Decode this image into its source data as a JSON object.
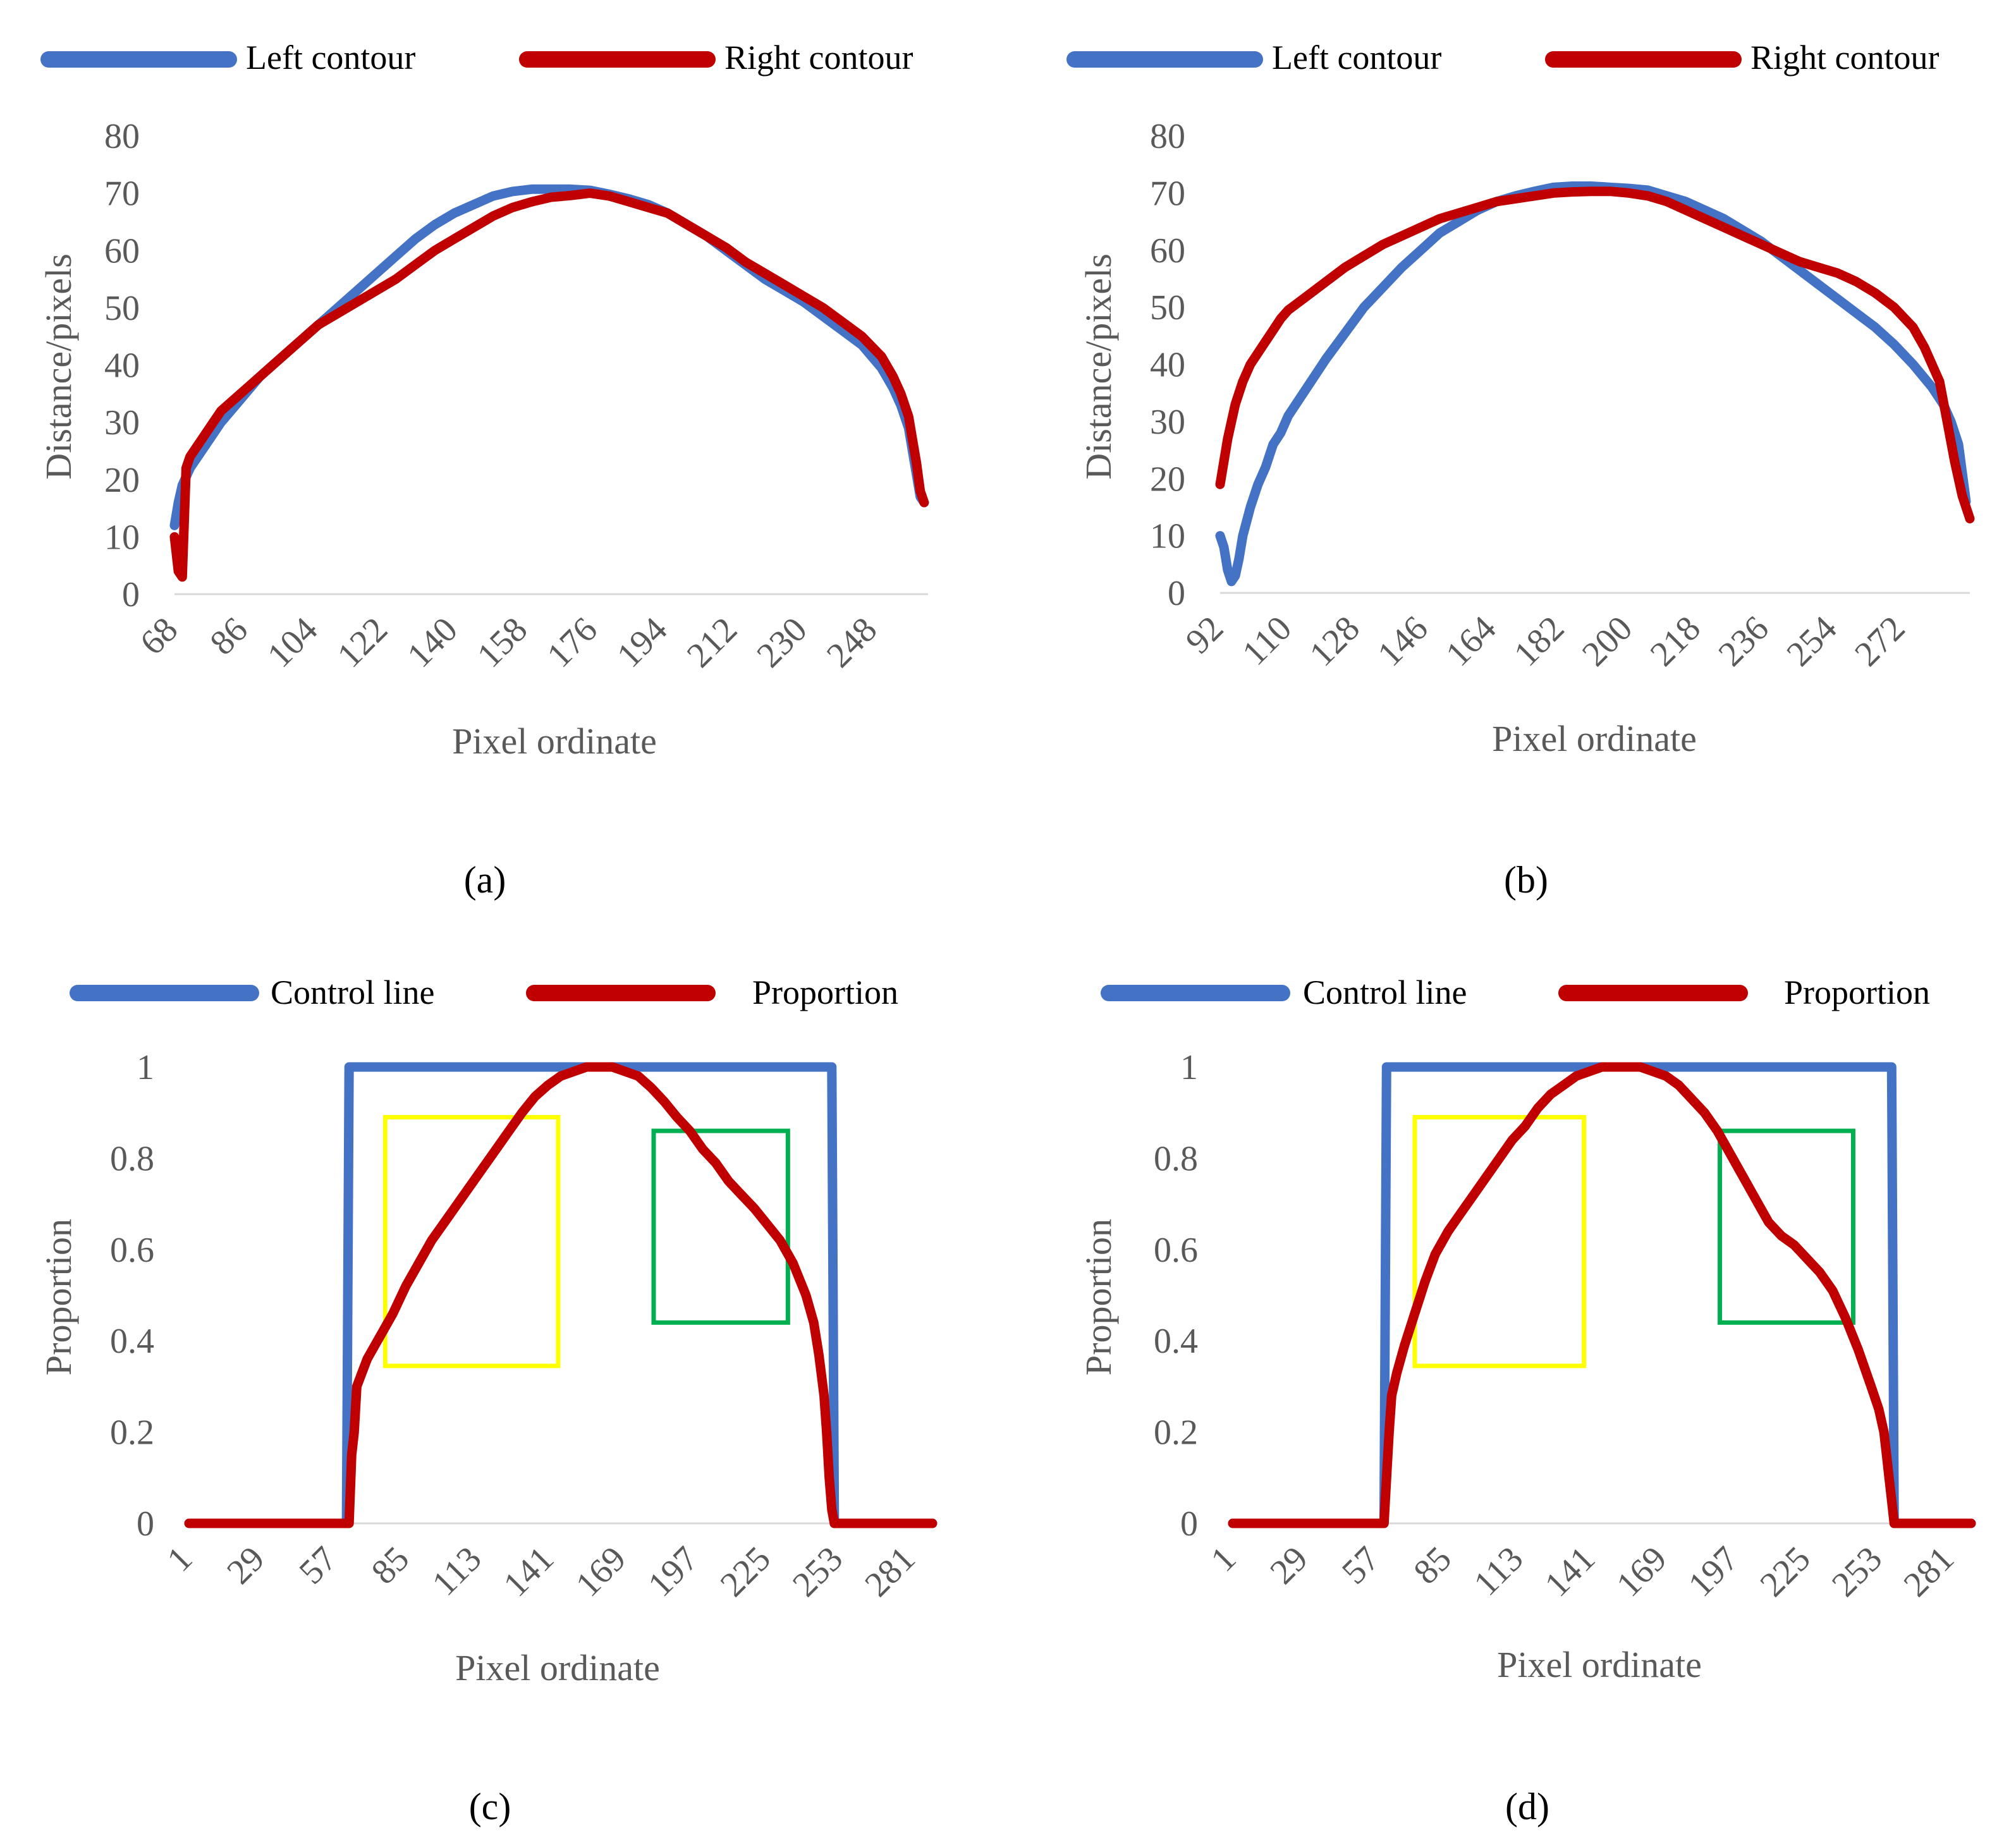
{
  "colors": {
    "left": "#4472C4",
    "right": "#C00000",
    "yellow_box": "#FFFF00",
    "green_box": "#00B050",
    "axis": "#D9D9D9",
    "text": "#595959"
  },
  "chart_data": [
    {
      "id": "a",
      "type": "line",
      "caption": "(a)",
      "xlabel": "Pixel ordinate",
      "ylabel": "Distance/pixels",
      "ylim": [
        0,
        80
      ],
      "yticks": [
        0,
        10,
        20,
        30,
        40,
        50,
        60,
        70,
        80
      ],
      "xlim": [
        68,
        262
      ],
      "xticks": [
        68,
        86,
        104,
        122,
        140,
        158,
        176,
        194,
        212,
        230,
        248
      ],
      "legend": [
        "Left contour",
        "Right contour"
      ],
      "series": [
        {
          "name": "Left contour",
          "color": "left",
          "x": [
            68,
            69,
            70,
            72,
            75,
            78,
            80,
            85,
            90,
            95,
            100,
            105,
            110,
            115,
            120,
            125,
            130,
            135,
            140,
            145,
            150,
            155,
            160,
            165,
            170,
            175,
            180,
            185,
            190,
            195,
            200,
            205,
            210,
            215,
            220,
            225,
            230,
            235,
            240,
            245,
            250,
            253,
            255,
            257,
            258,
            259,
            260,
            261
          ],
          "y": [
            12,
            16,
            19,
            22,
            25,
            28,
            30,
            34,
            38,
            41,
            44,
            47,
            50,
            53,
            56,
            59,
            62,
            64.5,
            66.5,
            68,
            69.5,
            70.3,
            70.7,
            70.7,
            70.7,
            70.5,
            69.8,
            69,
            68,
            66.5,
            64.5,
            62.5,
            60,
            57.5,
            55,
            53,
            51,
            48.5,
            46,
            43.5,
            39.5,
            36,
            33,
            29,
            25,
            21,
            17,
            16
          ]
        },
        {
          "name": "Right contour",
          "color": "right",
          "x": [
            68,
            69,
            70,
            71,
            72,
            75,
            78,
            80,
            85,
            90,
            95,
            100,
            105,
            110,
            115,
            120,
            125,
            130,
            135,
            140,
            145,
            150,
            155,
            160,
            165,
            170,
            175,
            180,
            185,
            190,
            195,
            200,
            205,
            210,
            215,
            220,
            225,
            230,
            235,
            240,
            245,
            250,
            253,
            255,
            257,
            258,
            259,
            260,
            261
          ],
          "y": [
            10,
            4,
            3,
            22,
            24,
            27,
            30,
            32,
            35,
            38,
            41,
            44,
            47,
            49,
            51,
            53,
            55,
            57.5,
            60,
            62,
            64,
            66,
            67.5,
            68.5,
            69.3,
            69.6,
            70,
            69.5,
            68.5,
            67.5,
            66.5,
            64.5,
            62.5,
            60.5,
            58,
            56,
            54,
            52,
            50,
            47.5,
            45,
            41.5,
            38,
            35,
            31,
            27,
            23,
            18,
            16
          ]
        }
      ]
    },
    {
      "id": "b",
      "type": "line",
      "caption": "(b)",
      "xlabel": "Pixel ordinate",
      "ylabel": "Distance/pixels",
      "ylim": [
        0,
        80
      ],
      "yticks": [
        0,
        10,
        20,
        30,
        40,
        50,
        60,
        70,
        80
      ],
      "xlim": [
        92,
        290
      ],
      "xticks": [
        92,
        110,
        128,
        146,
        164,
        182,
        200,
        218,
        236,
        254,
        272
      ],
      "legend": [
        "Left contour",
        "Right contour"
      ],
      "series": [
        {
          "name": "Left contour",
          "color": "left",
          "x": [
            92,
            93,
            94,
            95,
            96,
            97,
            98,
            100,
            102,
            104,
            106,
            108,
            110,
            115,
            120,
            125,
            130,
            135,
            140,
            145,
            150,
            155,
            160,
            165,
            170,
            175,
            180,
            185,
            190,
            195,
            200,
            205,
            210,
            215,
            220,
            225,
            230,
            235,
            240,
            245,
            250,
            255,
            260,
            265,
            270,
            275,
            280,
            283,
            285,
            287,
            289
          ],
          "y": [
            10,
            8,
            4,
            2,
            3,
            6,
            10,
            15,
            19,
            22,
            26,
            28,
            31,
            36,
            41,
            45.5,
            50,
            53.5,
            57,
            60,
            63,
            65,
            67,
            68.5,
            69.5,
            70.3,
            71,
            71.2,
            71.2,
            71,
            70.8,
            70.5,
            69.5,
            68.5,
            67,
            65.5,
            63.5,
            61.5,
            59,
            56.5,
            54,
            51.5,
            49,
            46.5,
            43.5,
            40,
            36,
            33,
            30,
            26,
            16
          ]
        },
        {
          "name": "Right contour",
          "color": "right",
          "x": [
            92,
            93,
            94,
            95,
            96,
            98,
            100,
            102,
            104,
            106,
            108,
            110,
            115,
            120,
            125,
            130,
            135,
            140,
            145,
            150,
            155,
            160,
            165,
            170,
            175,
            180,
            185,
            190,
            195,
            200,
            205,
            210,
            215,
            220,
            225,
            230,
            235,
            240,
            245,
            250,
            255,
            260,
            265,
            270,
            275,
            278,
            280,
            282,
            284,
            286,
            288,
            290
          ],
          "y": [
            19,
            23,
            27,
            30,
            33,
            37,
            40,
            42,
            44,
            46,
            48,
            49.5,
            52,
            54.5,
            57,
            59,
            61,
            62.5,
            64,
            65.5,
            66.5,
            67.5,
            68.5,
            69,
            69.5,
            70,
            70.2,
            70.3,
            70.3,
            70,
            69.5,
            68.5,
            67,
            65.5,
            64,
            62.5,
            61,
            59.5,
            58,
            57,
            56,
            54.5,
            52.5,
            50,
            46.5,
            43,
            40,
            37,
            30,
            23,
            17,
            13
          ]
        }
      ]
    },
    {
      "id": "c",
      "type": "line",
      "caption": "(c)",
      "xlabel": "Pixel ordinate",
      "ylabel": "Proportion",
      "ylim": [
        0,
        1
      ],
      "yticks": [
        0,
        0.2,
        0.4,
        0.6,
        0.8,
        1
      ],
      "ytick_labels": [
        "0",
        "0.2",
        "0.4",
        "0.6",
        "0.8",
        "1"
      ],
      "xlim": [
        1,
        289
      ],
      "xticks": [
        1,
        29,
        57,
        85,
        113,
        141,
        169,
        197,
        225,
        253,
        281
      ],
      "legend": [
        "Control line",
        "Proportion"
      ],
      "boxes": [
        {
          "color": "yellow_box",
          "x0": 77,
          "x1": 144,
          "y0": 0.345,
          "y1": 0.89
        },
        {
          "color": "green_box",
          "x0": 181,
          "x1": 233,
          "y0": 0.44,
          "y1": 0.86
        }
      ],
      "series": [
        {
          "name": "Control line",
          "color": "left",
          "x": [
            1,
            62,
            63,
            250,
            251,
            289
          ],
          "y": [
            0,
            0,
            1,
            1,
            0,
            0
          ]
        },
        {
          "name": "Proportion",
          "color": "right",
          "x": [
            1,
            63,
            64,
            65,
            66,
            68,
            70,
            73,
            76,
            80,
            85,
            90,
            95,
            100,
            105,
            110,
            115,
            120,
            125,
            130,
            135,
            140,
            145,
            150,
            155,
            160,
            165,
            170,
            175,
            180,
            185,
            190,
            195,
            200,
            205,
            210,
            215,
            220,
            225,
            230,
            235,
            240,
            243,
            245,
            247,
            248,
            249,
            250,
            251,
            289
          ],
          "y": [
            0,
            0,
            0.15,
            0.2,
            0.3,
            0.33,
            0.36,
            0.39,
            0.42,
            0.46,
            0.52,
            0.57,
            0.62,
            0.66,
            0.7,
            0.74,
            0.78,
            0.82,
            0.86,
            0.9,
            0.935,
            0.96,
            0.98,
            0.99,
            1,
            1,
            1,
            0.99,
            0.98,
            0.955,
            0.925,
            0.89,
            0.86,
            0.82,
            0.79,
            0.75,
            0.72,
            0.69,
            0.655,
            0.62,
            0.57,
            0.5,
            0.44,
            0.37,
            0.28,
            0.2,
            0.1,
            0.03,
            0,
            0
          ]
        }
      ]
    },
    {
      "id": "d",
      "type": "line",
      "caption": "(d)",
      "xlabel": "Pixel ordinate",
      "ylabel": "Proportion",
      "ylim": [
        0,
        1
      ],
      "yticks": [
        0,
        0.2,
        0.4,
        0.6,
        0.8,
        1
      ],
      "ytick_labels": [
        "0",
        "0.2",
        "0.4",
        "0.6",
        "0.8",
        "1"
      ],
      "xlim": [
        1,
        289
      ],
      "xticks": [
        1,
        29,
        57,
        85,
        113,
        141,
        169,
        197,
        225,
        253,
        281
      ],
      "legend": [
        "Control line",
        "Proportion"
      ],
      "boxes": [
        {
          "color": "yellow_box",
          "x0": 72,
          "x1": 138,
          "y0": 0.345,
          "y1": 0.89
        },
        {
          "color": "green_box",
          "x0": 191,
          "x1": 243,
          "y0": 0.44,
          "y1": 0.86
        }
      ],
      "series": [
        {
          "name": "Control line",
          "color": "left",
          "x": [
            1,
            60,
            61,
            258,
            259,
            289
          ],
          "y": [
            0,
            0,
            1,
            1,
            0,
            0
          ]
        },
        {
          "name": "Proportion",
          "color": "right",
          "x": [
            1,
            60,
            61,
            62,
            63,
            65,
            68,
            72,
            76,
            80,
            85,
            90,
            95,
            100,
            105,
            110,
            115,
            120,
            125,
            130,
            135,
            140,
            145,
            150,
            155,
            160,
            165,
            170,
            175,
            180,
            185,
            190,
            195,
            200,
            205,
            210,
            215,
            220,
            225,
            230,
            235,
            240,
            245,
            250,
            253,
            255,
            256,
            257,
            258,
            259,
            289
          ],
          "y": [
            0,
            0,
            0.1,
            0.2,
            0.28,
            0.33,
            0.39,
            0.46,
            0.53,
            0.59,
            0.64,
            0.68,
            0.72,
            0.76,
            0.8,
            0.84,
            0.87,
            0.91,
            0.94,
            0.96,
            0.98,
            0.99,
            1,
            1,
            1,
            1,
            0.99,
            0.98,
            0.96,
            0.93,
            0.9,
            0.86,
            0.81,
            0.76,
            0.71,
            0.66,
            0.63,
            0.61,
            0.58,
            0.55,
            0.51,
            0.45,
            0.38,
            0.3,
            0.25,
            0.2,
            0.15,
            0.1,
            0.05,
            0,
            0
          ]
        }
      ]
    }
  ]
}
